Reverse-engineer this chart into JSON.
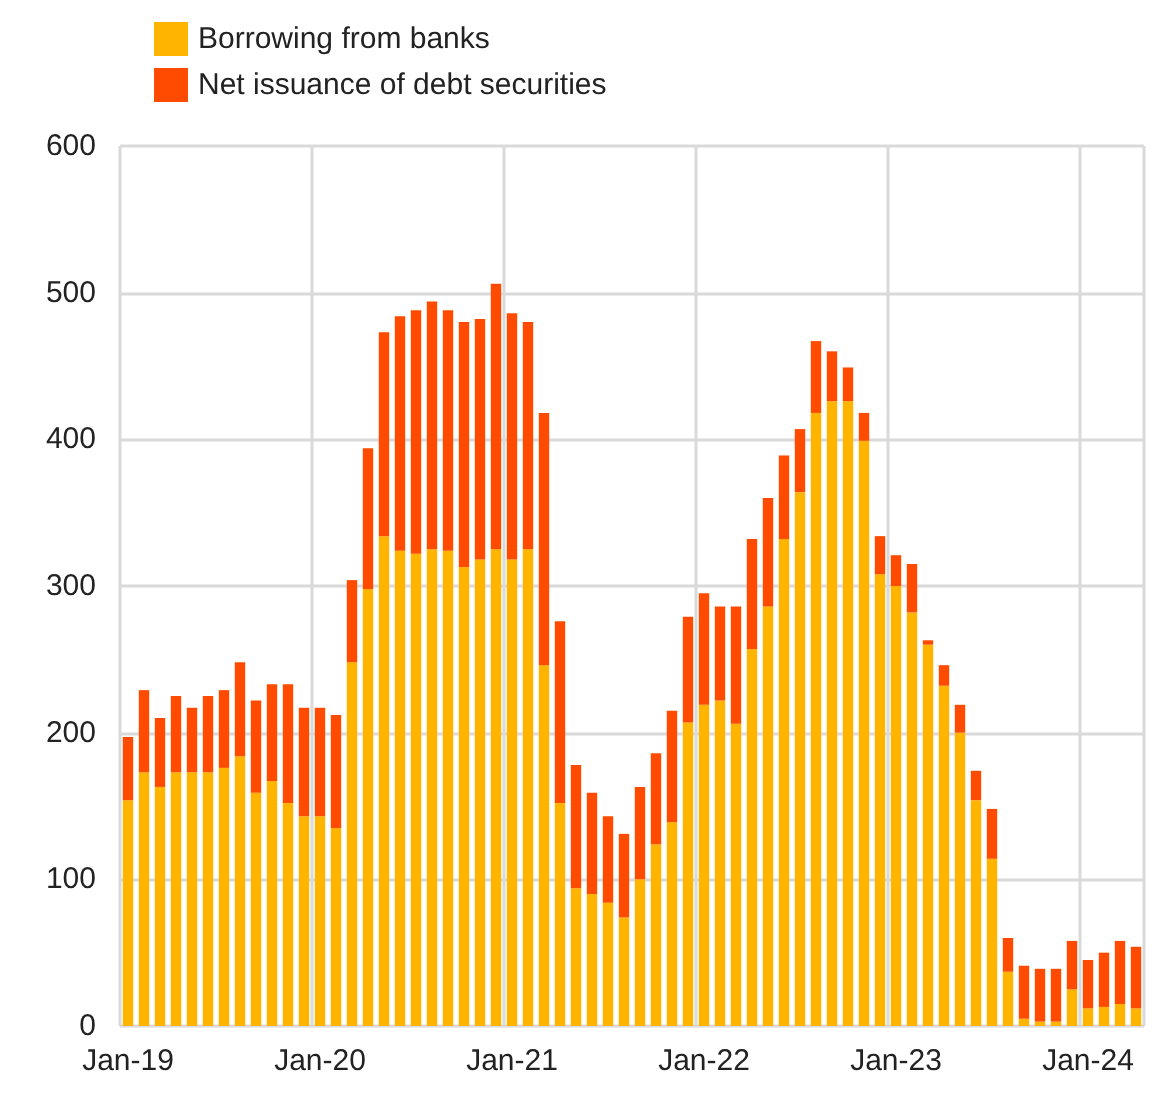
{
  "chart_data": {
    "type": "bar",
    "stacked": true,
    "categories": [
      "Jan-19",
      null,
      null,
      null,
      null,
      null,
      null,
      null,
      null,
      null,
      null,
      null,
      "Jan-20",
      null,
      null,
      null,
      null,
      null,
      null,
      null,
      null,
      null,
      null,
      null,
      "Jan-21",
      null,
      null,
      null,
      null,
      null,
      null,
      null,
      null,
      null,
      null,
      null,
      "Jan-22",
      null,
      null,
      null,
      null,
      null,
      null,
      null,
      null,
      null,
      null,
      null,
      "Jan-23",
      null,
      null,
      null,
      null,
      null,
      null,
      null,
      null,
      null,
      null,
      null,
      "Jan-24",
      null,
      null,
      null
    ],
    "series": [
      {
        "name": "Borrowing from banks",
        "color": "#ffb400",
        "values": [
          154,
          173,
          163,
          173,
          173,
          173,
          176,
          184,
          159,
          167,
          152,
          143,
          143,
          135,
          248,
          298,
          334,
          324,
          322,
          325,
          324,
          313,
          318,
          325,
          318,
          325,
          246,
          152,
          94,
          90,
          84,
          74,
          100,
          124,
          139,
          207,
          219,
          222,
          206,
          257,
          286,
          332,
          364,
          418,
          426,
          426,
          399,
          308,
          300,
          282,
          260,
          232,
          200,
          154,
          114,
          37,
          5,
          3,
          3,
          25,
          12,
          13,
          15,
          12
        ]
      },
      {
        "name": "Net issuance of debt securities",
        "color": "#ff4b00",
        "values": [
          43,
          56,
          47,
          52,
          44,
          52,
          53,
          64,
          63,
          66,
          81,
          74,
          74,
          77,
          56,
          96,
          139,
          160,
          166,
          169,
          164,
          167,
          164,
          181,
          168,
          155,
          172,
          124,
          84,
          69,
          59,
          57,
          63,
          62,
          76,
          72,
          76,
          64,
          80,
          75,
          74,
          57,
          43,
          49,
          34,
          23,
          19,
          26,
          21,
          33,
          3,
          14,
          19,
          20,
          34,
          23,
          36,
          36,
          36,
          33,
          33,
          37,
          43,
          42
        ]
      }
    ],
    "ylim": [
      0,
      600
    ],
    "yticks": [
      0,
      100,
      200,
      300,
      400,
      500,
      600
    ],
    "grid": true,
    "legend": "top left"
  }
}
